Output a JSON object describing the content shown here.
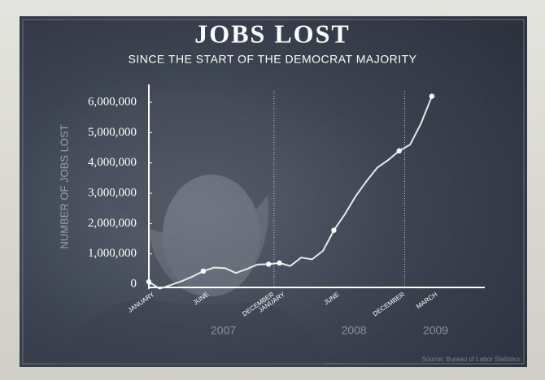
{
  "chart_data": {
    "type": "line",
    "title": "JOBS LOST",
    "subtitle": "SINCE THE START OF THE DEMOCRAT MAJORITY",
    "y_label": "NUMBER OF JOBS LOST",
    "source": "Source: Bureau of Labor Statistics",
    "categories": [
      "JANUARY",
      null,
      null,
      null,
      null,
      "JUNE",
      null,
      null,
      null,
      null,
      null,
      "DECEMBER",
      "JANUARY",
      null,
      null,
      null,
      null,
      "JUNE",
      null,
      null,
      null,
      null,
      null,
      "DECEMBER",
      null,
      null,
      "MARCH"
    ],
    "years": [
      "2007",
      "2008",
      "2009"
    ],
    "series": [
      {
        "name": "Jobs lost",
        "color": "#e8e8e8",
        "values": [
          80000,
          -150000,
          -30000,
          100000,
          250000,
          430000,
          550000,
          530000,
          370000,
          500000,
          650000,
          660000,
          700000,
          600000,
          880000,
          820000,
          1100000,
          1780000,
          2300000,
          2900000,
          3400000,
          3850000,
          4100000,
          4400000,
          4600000,
          5300000,
          6200000
        ]
      }
    ],
    "ylim": [
      -150000,
      6550000
    ],
    "yticks": [
      0,
      {
        "value": 1000000,
        "label": "1,000,000"
      },
      {
        "value": 2000000,
        "label": "2,000,000"
      },
      {
        "value": 3000000,
        "label": "3,000,000"
      },
      {
        "value": 4000000,
        "label": "4,000,000"
      },
      {
        "value": 5000000,
        "label": "5,000,000"
      },
      {
        "value": 6000000,
        "label": "6,000,000"
      }
    ]
  }
}
